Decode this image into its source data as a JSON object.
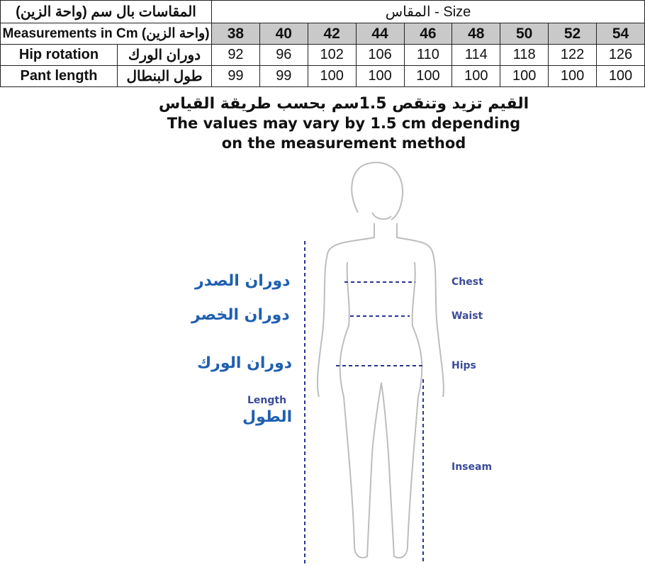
{
  "table": {
    "title_ar": "المقاسات بال سم (واحة الزين)",
    "size_header": "المقاس - Size",
    "units_label": "Measurements in Cm (واحة الزين)",
    "sizes": [
      "38",
      "40",
      "42",
      "44",
      "46",
      "48",
      "50",
      "52",
      "54"
    ],
    "rows": [
      {
        "en": "Hip rotation",
        "ar": "دوران الورك",
        "values": [
          "92",
          "96",
          "102",
          "106",
          "110",
          "114",
          "118",
          "122",
          "126"
        ]
      },
      {
        "en": "Pant length",
        "ar": "طول البنطال",
        "values": [
          "99",
          "99",
          "100",
          "100",
          "100",
          "100",
          "100",
          "100",
          "100"
        ]
      }
    ]
  },
  "note": {
    "ar": "القيم تزيد وتنقص 1.5سم بحسب طريقة القياس",
    "en_line1": "The values may vary by 1.5 cm depending",
    "en_line2": "on the measurement method"
  },
  "figure": {
    "chest_ar": "دوران الصدر",
    "waist_ar": "دوران الخصر",
    "hips_ar": "دوران الورك",
    "length_en": "Length",
    "length_ar": "الطول",
    "chest_en": "Chest",
    "waist_en": "Waist",
    "hips_en": "Hips",
    "inseam_en": "Inseam",
    "line_color": "#2a3590"
  }
}
